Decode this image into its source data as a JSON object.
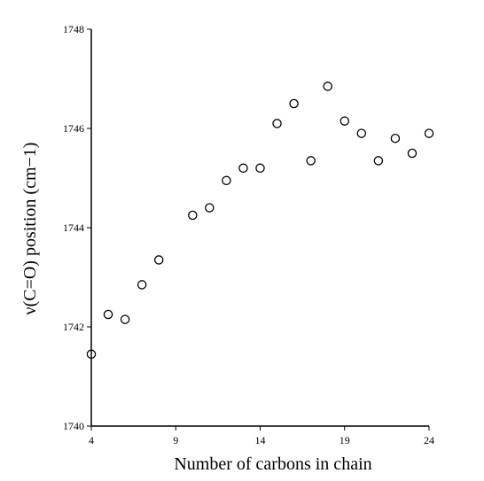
{
  "chart_data": {
    "type": "scatter",
    "title": "",
    "xlabel": "Number of carbons in chain",
    "ylabel": "ν(C=O) position (cm−1)",
    "xlim": [
      4,
      24
    ],
    "ylim": [
      1740,
      1748
    ],
    "x_ticks": [
      "4",
      "9",
      "14",
      "19",
      "24"
    ],
    "y_ticks": [
      "1740",
      "1742",
      "1744",
      "1746",
      "1748"
    ],
    "grid": false,
    "legend": "none",
    "marker": "open-circle",
    "marker_color": "#000000",
    "series": [
      {
        "x": [
          4,
          5,
          6,
          7,
          8,
          10,
          11,
          12,
          13,
          14,
          15,
          16,
          17,
          18,
          19,
          20,
          21,
          22,
          23,
          24
        ],
        "y": [
          1741.45,
          1742.25,
          1742.15,
          1742.85,
          1743.35,
          1744.25,
          1744.4,
          1744.95,
          1745.2,
          1745.2,
          1746.1,
          1746.5,
          1745.35,
          1746.85,
          1746.15,
          1745.9,
          1745.35,
          1745.8,
          1745.5,
          1745.9
        ]
      }
    ]
  }
}
